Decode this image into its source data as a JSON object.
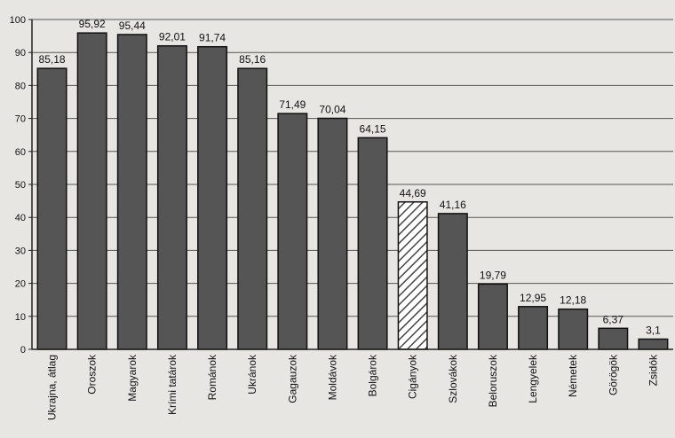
{
  "chart_data": {
    "type": "bar",
    "title": "",
    "xlabel": "",
    "ylabel": "",
    "ylim": [
      0,
      100
    ],
    "yticks": [
      0,
      10,
      20,
      30,
      40,
      50,
      60,
      70,
      80,
      90,
      100
    ],
    "grid": true,
    "categories": [
      "Ukrajna, átlag",
      "Oroszok",
      "Magyarok",
      "Krími tatárok",
      "Románok",
      "Ukránok",
      "Gagauzok",
      "Moldávok",
      "Bolgárok",
      "Cigányok",
      "Szlovákok",
      "Beloruszok",
      "Lengyelek",
      "Németek",
      "Görögök",
      "Zsidók"
    ],
    "values": [
      85.18,
      95.92,
      95.44,
      92.01,
      91.74,
      85.16,
      71.49,
      70.04,
      64.15,
      44.69,
      41.16,
      19.79,
      12.95,
      12.18,
      6.37,
      3.1
    ],
    "value_labels": [
      "85,18",
      "95,92",
      "95,44",
      "92,01",
      "91,74",
      "85,16",
      "71,49",
      "70,04",
      "64,15",
      "44,69",
      "41,16",
      "19,79",
      "12,95",
      "12,18",
      "6,37",
      "3,1"
    ],
    "highlight_index": 9,
    "colors": {
      "bar": "#555555",
      "highlight_stripe": "#444444",
      "highlight_bg": "#ffffff",
      "grid": "#555555",
      "axis": "#222222"
    }
  }
}
